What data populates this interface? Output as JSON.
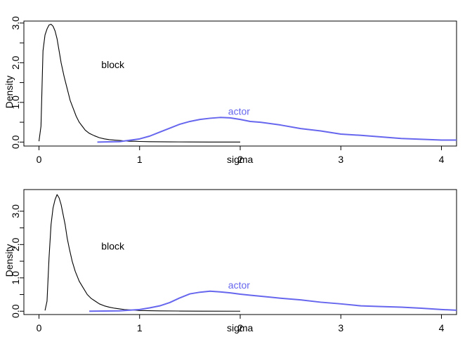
{
  "chart_data": [
    {
      "type": "line",
      "xlabel": "sigma",
      "ylabel": "Density",
      "xlim": [
        -0.15,
        4.15
      ],
      "ylim": [
        -0.1,
        3.05
      ],
      "x_ticks": [
        "0",
        "1",
        "2",
        "3",
        "4"
      ],
      "y_ticks": [
        "0.0",
        "1.0",
        "2.0",
        "3.0"
      ],
      "annotations": [
        {
          "text": "block",
          "x": 0.62,
          "y": 1.95,
          "color": "#000000"
        },
        {
          "text": "actor",
          "x": 1.88,
          "y": 0.78,
          "color": "#6666ee"
        }
      ],
      "series": [
        {
          "name": "block",
          "color": "#000000",
          "x": [
            0.0,
            0.02,
            0.04,
            0.06,
            0.08,
            0.1,
            0.12,
            0.14,
            0.16,
            0.18,
            0.2,
            0.22,
            0.25,
            0.28,
            0.31,
            0.34,
            0.37,
            0.4,
            0.43,
            0.46,
            0.5,
            0.55,
            0.6,
            0.65,
            0.7,
            0.75,
            0.8,
            0.85,
            0.9,
            0.95,
            1.0,
            1.1,
            1.2,
            1.3,
            1.5,
            1.7,
            2.0
          ],
          "values": [
            0.02,
            0.4,
            2.3,
            2.7,
            2.85,
            2.95,
            2.97,
            2.92,
            2.8,
            2.6,
            2.3,
            2.0,
            1.65,
            1.35,
            1.05,
            0.85,
            0.65,
            0.5,
            0.4,
            0.3,
            0.22,
            0.16,
            0.11,
            0.08,
            0.06,
            0.05,
            0.04,
            0.03,
            0.02,
            0.02,
            0.015,
            0.01,
            0.008,
            0.005,
            0.003,
            0.001,
            0.0
          ]
        },
        {
          "name": "actor",
          "color": "#6666ee",
          "x": [
            0.58,
            0.8,
            1.0,
            1.1,
            1.2,
            1.3,
            1.4,
            1.5,
            1.6,
            1.7,
            1.8,
            1.9,
            2.0,
            2.1,
            2.2,
            2.4,
            2.6,
            2.8,
            3.0,
            3.2,
            3.4,
            3.6,
            3.8,
            4.0,
            4.15
          ],
          "values": [
            0.0,
            0.01,
            0.08,
            0.15,
            0.25,
            0.35,
            0.45,
            0.52,
            0.57,
            0.6,
            0.62,
            0.61,
            0.57,
            0.52,
            0.5,
            0.43,
            0.34,
            0.28,
            0.2,
            0.17,
            0.13,
            0.09,
            0.07,
            0.05,
            0.05
          ]
        }
      ]
    },
    {
      "type": "line",
      "xlabel": "sigma",
      "ylabel": "Density",
      "xlim": [
        -0.15,
        4.15
      ],
      "ylim": [
        -0.1,
        3.65
      ],
      "x_ticks": [
        "0",
        "1",
        "2",
        "3",
        "4"
      ],
      "y_ticks": [
        "0.0",
        "1.0",
        "2.0",
        "3.0"
      ],
      "annotations": [
        {
          "text": "block",
          "x": 0.62,
          "y": 1.95,
          "color": "#000000"
        },
        {
          "text": "actor",
          "x": 1.88,
          "y": 0.78,
          "color": "#6666ee"
        }
      ],
      "series": [
        {
          "name": "block",
          "color": "#000000",
          "x": [
            0.06,
            0.08,
            0.1,
            0.12,
            0.14,
            0.16,
            0.18,
            0.2,
            0.22,
            0.24,
            0.26,
            0.28,
            0.3,
            0.33,
            0.36,
            0.4,
            0.44,
            0.48,
            0.52,
            0.56,
            0.6,
            0.65,
            0.7,
            0.75,
            0.8,
            0.85,
            0.9,
            0.95,
            1.0,
            1.1,
            1.2,
            1.4,
            1.6,
            2.0
          ],
          "values": [
            0.02,
            0.3,
            1.6,
            2.6,
            3.1,
            3.35,
            3.5,
            3.4,
            3.2,
            2.9,
            2.6,
            2.2,
            1.9,
            1.5,
            1.2,
            0.9,
            0.7,
            0.5,
            0.38,
            0.3,
            0.22,
            0.16,
            0.12,
            0.09,
            0.07,
            0.05,
            0.04,
            0.03,
            0.02,
            0.015,
            0.01,
            0.005,
            0.002,
            0.0
          ]
        },
        {
          "name": "actor",
          "color": "#6666ee",
          "x": [
            0.5,
            0.8,
            1.0,
            1.1,
            1.2,
            1.3,
            1.4,
            1.5,
            1.6,
            1.7,
            1.8,
            1.9,
            2.0,
            2.1,
            2.2,
            2.4,
            2.6,
            2.8,
            3.0,
            3.2,
            3.4,
            3.6,
            3.8,
            4.0,
            4.15
          ],
          "values": [
            0.0,
            0.01,
            0.05,
            0.1,
            0.16,
            0.26,
            0.4,
            0.52,
            0.57,
            0.6,
            0.58,
            0.55,
            0.51,
            0.48,
            0.45,
            0.39,
            0.34,
            0.27,
            0.22,
            0.16,
            0.14,
            0.12,
            0.09,
            0.05,
            0.03
          ]
        }
      ]
    }
  ]
}
